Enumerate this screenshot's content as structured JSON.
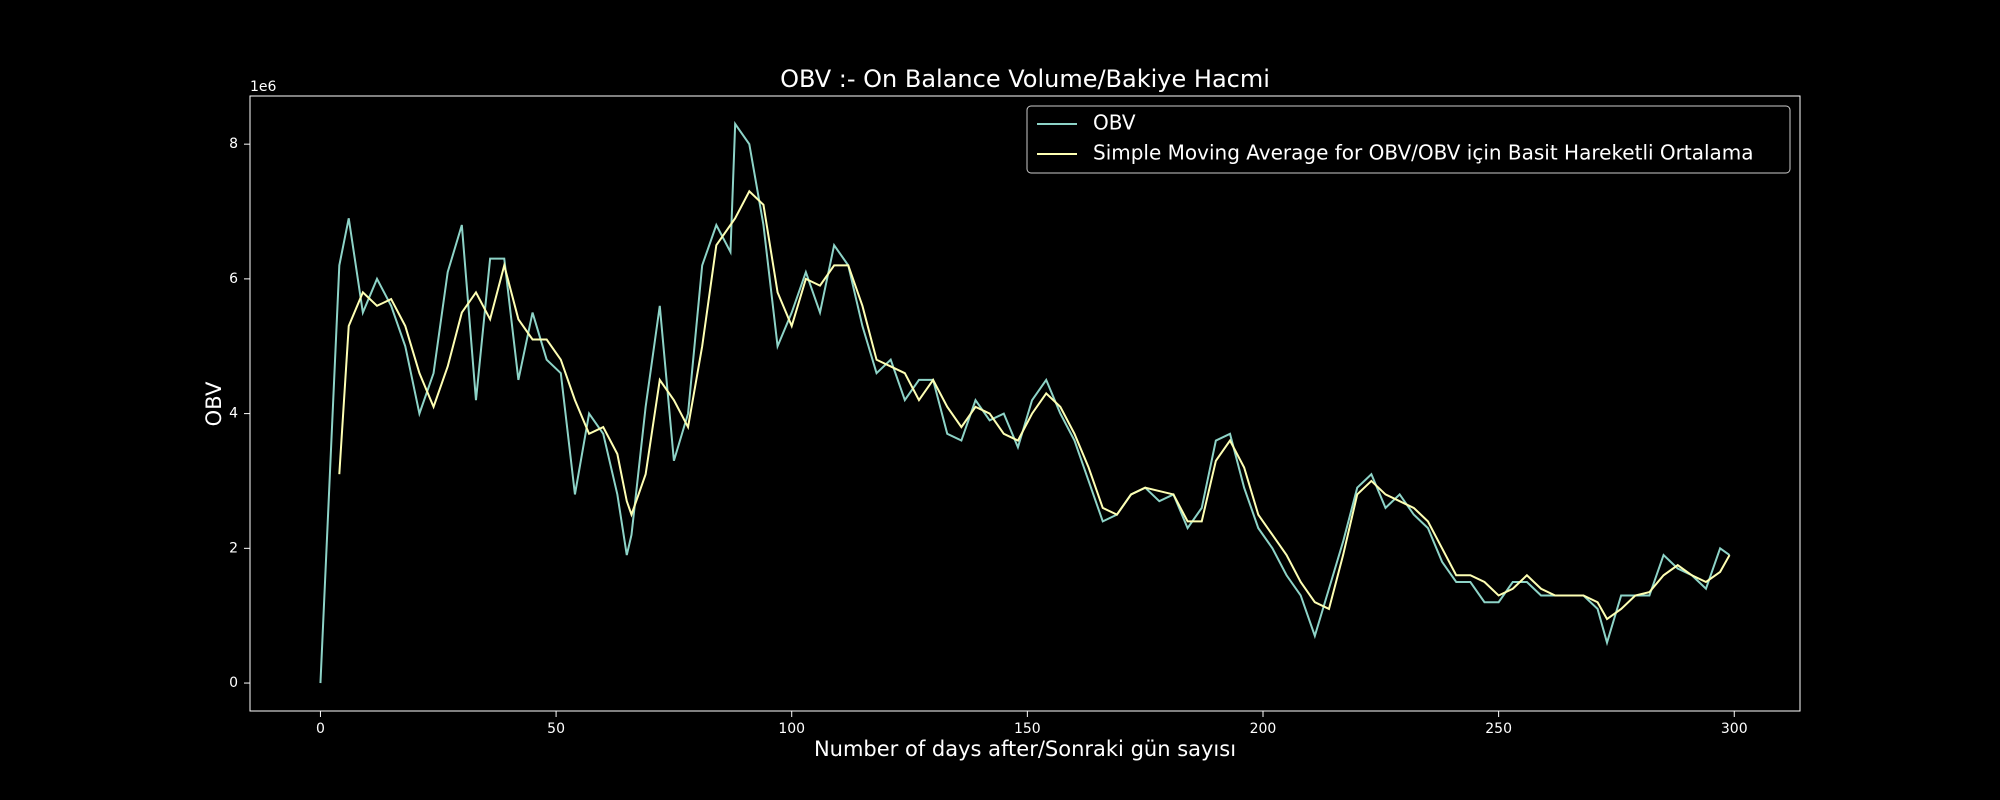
{
  "chart_data": {
    "type": "line",
    "title": "OBV :- On Balance Volume/Bakiye Hacmi",
    "xlabel": "Number of days after/Sonraki gün sayısı",
    "ylabel": "OBV",
    "y_offset_label": "1e6",
    "x": [
      0,
      4,
      6,
      9,
      12,
      15,
      18,
      21,
      24,
      27,
      30,
      33,
      36,
      39,
      42,
      45,
      48,
      51,
      54,
      57,
      60,
      63,
      65,
      66,
      69,
      72,
      75,
      78,
      81,
      84,
      87,
      88,
      91,
      94,
      97,
      100,
      103,
      106,
      109,
      112,
      115,
      118,
      121,
      124,
      127,
      130,
      133,
      136,
      139,
      142,
      145,
      148,
      151,
      154,
      157,
      160,
      163,
      166,
      169,
      172,
      175,
      178,
      181,
      184,
      187,
      190,
      193,
      196,
      199,
      202,
      205,
      208,
      211,
      214,
      217,
      220,
      223,
      226,
      229,
      232,
      235,
      238,
      241,
      244,
      247,
      250,
      253,
      256,
      259,
      262,
      265,
      268,
      271,
      273,
      276,
      279,
      282,
      285,
      288,
      291,
      294,
      297,
      299
    ],
    "series": [
      {
        "name": "OBV",
        "color": "#8dd3c7",
        "values": [
          0,
          6.2,
          6.9,
          5.5,
          6.0,
          5.6,
          5.0,
          4.0,
          4.6,
          6.1,
          6.8,
          4.2,
          6.3,
          6.3,
          4.5,
          5.5,
          4.8,
          4.6,
          2.8,
          4.0,
          3.7,
          2.8,
          1.9,
          2.2,
          4.1,
          5.6,
          3.3,
          4.0,
          6.2,
          6.8,
          6.4,
          8.3,
          8.0,
          6.8,
          5.0,
          5.5,
          6.1,
          5.5,
          6.5,
          6.2,
          5.3,
          4.6,
          4.8,
          4.2,
          4.5,
          4.5,
          3.7,
          3.6,
          4.2,
          3.9,
          4.0,
          3.5,
          4.2,
          4.5,
          4.0,
          3.6,
          3.0,
          2.4,
          2.5,
          2.8,
          2.9,
          2.7,
          2.8,
          2.3,
          2.6,
          3.6,
          3.7,
          2.9,
          2.3,
          2.0,
          1.6,
          1.3,
          0.7,
          1.4,
          2.1,
          2.9,
          3.1,
          2.6,
          2.8,
          2.5,
          2.3,
          1.8,
          1.5,
          1.5,
          1.2,
          1.2,
          1.5,
          1.5,
          1.3,
          1.3,
          1.3,
          1.3,
          1.1,
          0.6,
          1.3,
          1.3,
          1.3,
          1.9,
          1.7,
          1.6,
          1.4,
          2.0,
          1.9
        ]
      },
      {
        "name": "Simple Moving Average for OBV/OBV için Basit Hareketli Ortalama",
        "color": "#feffb3",
        "values": [
          null,
          3.1,
          5.3,
          5.8,
          5.6,
          5.7,
          5.3,
          4.6,
          4.1,
          4.7,
          5.5,
          5.8,
          5.4,
          6.2,
          5.4,
          5.1,
          5.1,
          4.8,
          4.2,
          3.7,
          3.8,
          3.4,
          2.7,
          2.5,
          3.1,
          4.5,
          4.2,
          3.8,
          5.0,
          6.5,
          6.8,
          6.9,
          7.3,
          7.1,
          5.8,
          5.3,
          6.0,
          5.9,
          6.2,
          6.2,
          5.6,
          4.8,
          4.7,
          4.6,
          4.2,
          4.5,
          4.1,
          3.8,
          4.1,
          4.0,
          3.7,
          3.6,
          4.0,
          4.3,
          4.1,
          3.7,
          3.2,
          2.6,
          2.5,
          2.8,
          2.9,
          2.85,
          2.8,
          2.4,
          2.4,
          3.3,
          3.6,
          3.2,
          2.5,
          2.2,
          1.9,
          1.5,
          1.2,
          1.1,
          1.9,
          2.8,
          3.0,
          2.8,
          2.7,
          2.6,
          2.4,
          2.0,
          1.6,
          1.6,
          1.5,
          1.3,
          1.4,
          1.6,
          1.4,
          1.3,
          1.3,
          1.3,
          1.2,
          0.95,
          1.1,
          1.3,
          1.35,
          1.6,
          1.75,
          1.6,
          1.5,
          1.65,
          1.9
        ]
      }
    ],
    "xlim": [
      -14.95,
      313.95
    ],
    "xticks": [
      0,
      50,
      100,
      150,
      200,
      250,
      300
    ],
    "ylim": [
      -0.415,
      8.715
    ],
    "yticks": [
      0,
      2,
      4,
      6,
      8
    ],
    "grid": false,
    "legend": "upper right"
  }
}
